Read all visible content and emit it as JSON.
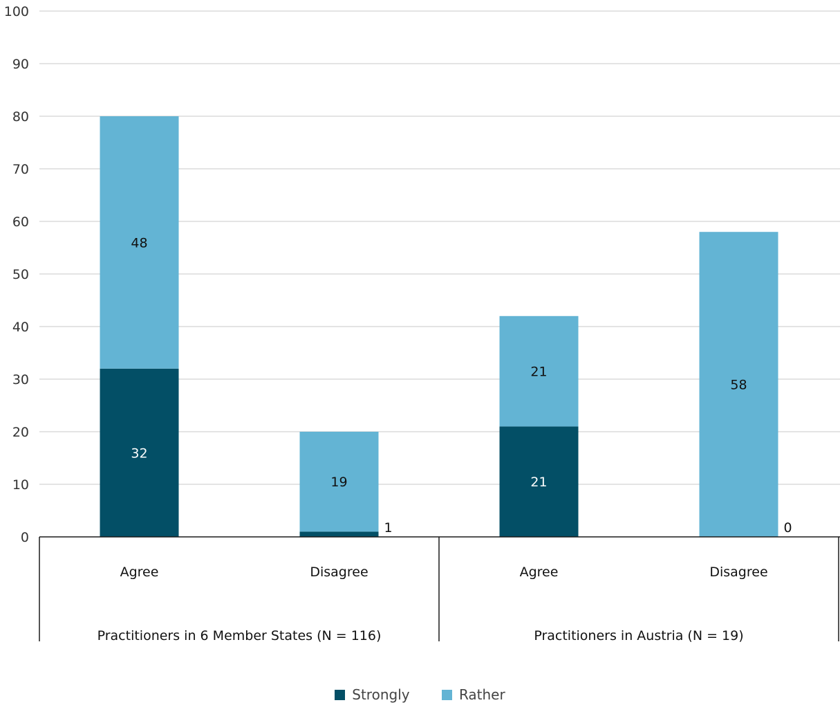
{
  "chart_data": {
    "type": "bar",
    "stacked": true,
    "ylim": [
      0,
      100
    ],
    "yticks": [
      0,
      10,
      20,
      30,
      40,
      50,
      60,
      70,
      80,
      90,
      100
    ],
    "grid": true,
    "legend_position": "bottom-center",
    "groups": [
      {
        "label": "Practitioners in 6 Member States (N = 116)",
        "categories": [
          "Agree",
          "Disagree"
        ]
      },
      {
        "label": "Practitioners in Austria (N = 19)",
        "categories": [
          "Agree",
          "Disagree"
        ]
      }
    ],
    "categories": [
      "Agree",
      "Disagree",
      "Agree",
      "Disagree"
    ],
    "series": [
      {
        "name": "Strongly",
        "color": "#034f66",
        "values": [
          32,
          1,
          21,
          0
        ]
      },
      {
        "name": "Rather",
        "color": "#63b4d4",
        "values": [
          48,
          19,
          21,
          58
        ]
      }
    ]
  }
}
